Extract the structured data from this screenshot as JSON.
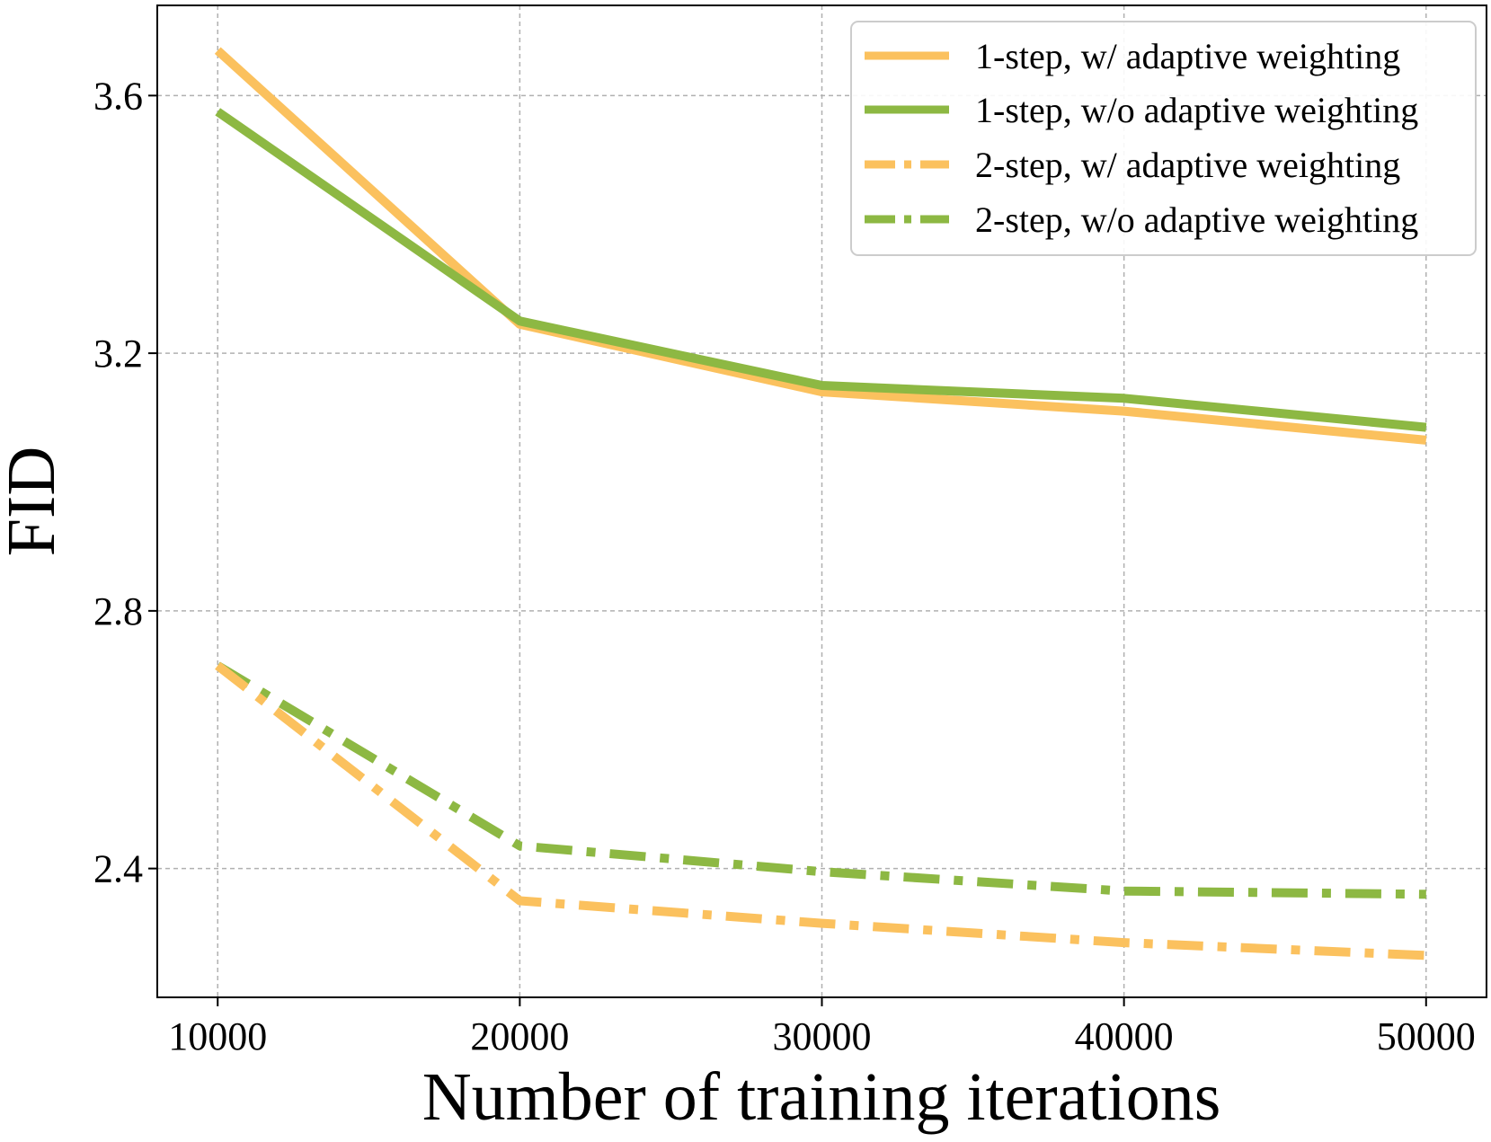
{
  "chart_data": {
    "type": "line",
    "title": "",
    "xlabel": "Number of training iterations",
    "ylabel": "FID",
    "x": [
      10000,
      20000,
      30000,
      40000,
      50000
    ],
    "xlim": [
      8000,
      52000
    ],
    "ylim": [
      2.2,
      3.74
    ],
    "xticks": [
      10000,
      20000,
      30000,
      40000,
      50000
    ],
    "yticks": [
      2.4,
      2.8,
      3.2,
      3.6
    ],
    "xtick_labels": [
      "10000",
      "20000",
      "30000",
      "40000",
      "50000"
    ],
    "ytick_labels": [
      "2.4",
      "2.8",
      "3.2",
      "3.6"
    ],
    "grid": true,
    "legend_position": "top-right",
    "series": [
      {
        "name": "1-step, w/ adaptive weighting",
        "values": [
          3.67,
          3.245,
          3.14,
          3.11,
          3.065
        ],
        "color": "#FBC15E",
        "style": "solid"
      },
      {
        "name": "1-step, w/o adaptive weighting",
        "values": [
          3.575,
          3.25,
          3.15,
          3.13,
          3.085
        ],
        "color": "#8DB843",
        "style": "dashdot"
      },
      {
        "name": "2-step, w/ adaptive weighting",
        "values": [
          2.715,
          2.35,
          2.315,
          2.285,
          2.265
        ],
        "color": "#FBC15E",
        "style": "dashdot"
      },
      {
        "name": "2-step, w/o adaptive weighting",
        "values": [
          2.715,
          2.435,
          2.395,
          2.365,
          2.36
        ],
        "color": "#8DB843",
        "style": "dashdot"
      }
    ]
  }
}
